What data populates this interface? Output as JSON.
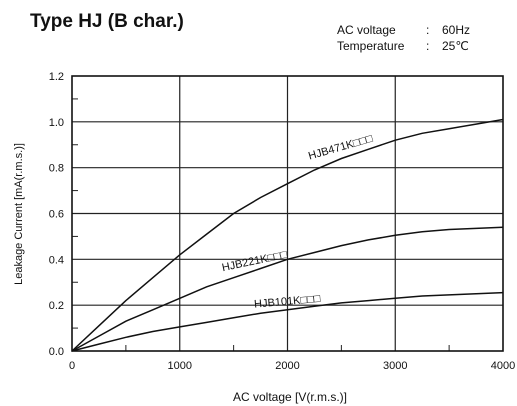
{
  "chart_data": {
    "type": "line",
    "title": "Type HJ  (B char.)",
    "conditions": [
      {
        "label": "AC voltage",
        "value": "60Hz"
      },
      {
        "label": "Temperature",
        "value": "25℃"
      }
    ],
    "xlabel": "AC voltage [V(r.m.s.)]",
    "ylabel": "Leakage Current  [mA(r.m.s.)]",
    "xlim": [
      0,
      4000
    ],
    "ylim": [
      0,
      1.2
    ],
    "xticks": [
      0,
      1000,
      2000,
      3000,
      4000
    ],
    "xtick_labels": [
      "0",
      "1000",
      "2000",
      "3000",
      "4000"
    ],
    "yticks": [
      0,
      0.2,
      0.4,
      0.6,
      0.8,
      1.0,
      1.2
    ],
    "ytick_labels": [
      "0.0",
      "0.2",
      "0.4",
      "0.6",
      "0.8",
      "1.0",
      "1.2"
    ],
    "grid": true,
    "series": [
      {
        "name": "HJB471K□□□",
        "x": [
          0,
          250,
          500,
          750,
          1000,
          1250,
          1500,
          1750,
          2000,
          2250,
          2500,
          2750,
          3000,
          3250,
          3500,
          3750,
          4000
        ],
        "y": [
          0,
          0.11,
          0.22,
          0.32,
          0.42,
          0.51,
          0.6,
          0.67,
          0.73,
          0.79,
          0.84,
          0.88,
          0.92,
          0.95,
          0.97,
          0.99,
          1.01
        ]
      },
      {
        "name": "HJB221K□□□",
        "x": [
          0,
          250,
          500,
          750,
          1000,
          1250,
          1500,
          1750,
          2000,
          2250,
          2500,
          2750,
          3000,
          3250,
          3500,
          3750,
          4000
        ],
        "y": [
          0,
          0.065,
          0.13,
          0.18,
          0.23,
          0.28,
          0.32,
          0.36,
          0.4,
          0.43,
          0.46,
          0.485,
          0.505,
          0.52,
          0.53,
          0.535,
          0.54
        ]
      },
      {
        "name": "HJB101K□□□",
        "x": [
          0,
          250,
          500,
          750,
          1000,
          1250,
          1500,
          1750,
          2000,
          2250,
          2500,
          2750,
          3000,
          3250,
          3500,
          3750,
          4000
        ],
        "y": [
          0,
          0.03,
          0.06,
          0.085,
          0.105,
          0.125,
          0.145,
          0.165,
          0.18,
          0.195,
          0.21,
          0.22,
          0.23,
          0.24,
          0.245,
          0.25,
          0.255
        ]
      }
    ]
  }
}
